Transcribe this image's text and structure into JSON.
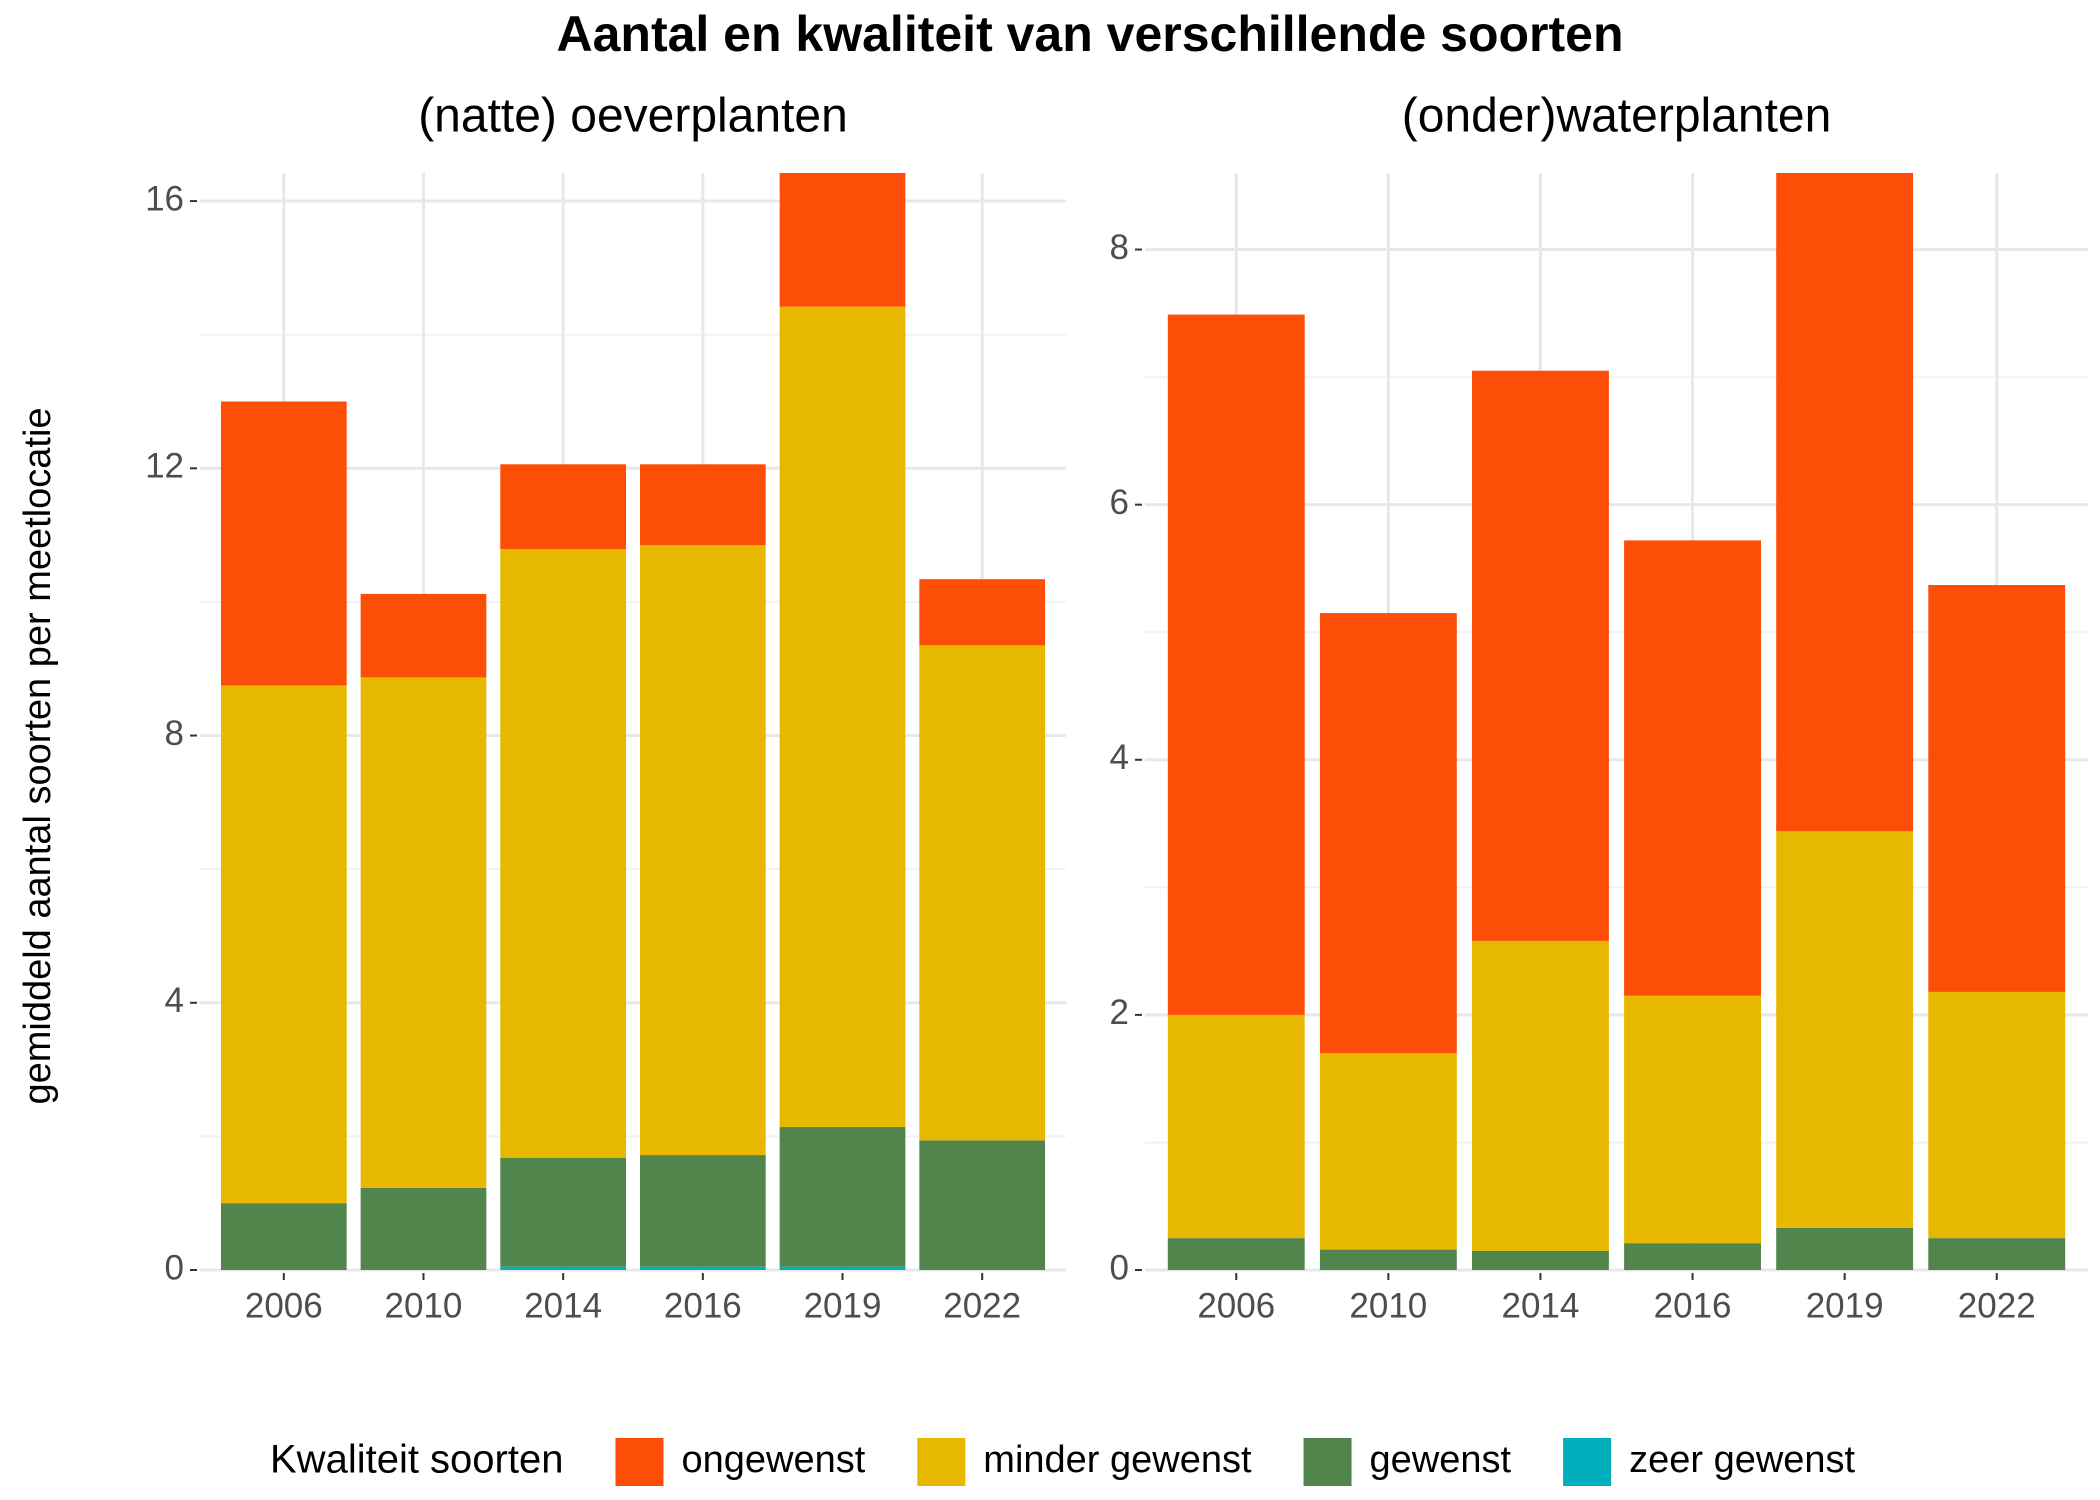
{
  "title": "Aantal en kwaliteit van verschillende soorten",
  "y_label": "gemiddeld aantal soorten per meetlocatie",
  "legend_title": "Kwaliteit soorten",
  "chart_data": [
    {
      "type": "stacked-bar",
      "subtitle": "(natte) oeverplanten",
      "categories": [
        "2006",
        "2010",
        "2014",
        "2016",
        "2019",
        "2022"
      ],
      "series": [
        {
          "name": "ongewenst",
          "color": "#fc4e07",
          "values": [
            4.25,
            1.25,
            1.27,
            1.21,
            2.0,
            0.99
          ]
        },
        {
          "name": "minder gewenst",
          "color": "#e7b800",
          "values": [
            7.75,
            7.64,
            9.11,
            9.13,
            12.28,
            7.41
          ]
        },
        {
          "name": "gewenst",
          "color": "#52854c",
          "values": [
            1.0,
            1.23,
            1.63,
            1.67,
            2.09,
            1.94
          ]
        },
        {
          "name": "zeer gewenst",
          "color": "#00afbb",
          "values": [
            0,
            0,
            0.05,
            0.05,
            0.05,
            0
          ]
        }
      ],
      "ylim": [
        0,
        16.42
      ],
      "yticks": [
        0,
        4,
        8,
        12,
        16
      ],
      "minor_yticks": [
        2,
        6,
        10,
        14
      ],
      "grid": true
    },
    {
      "type": "stacked-bar",
      "subtitle": "(onder)waterplanten",
      "categories": [
        "2006",
        "2010",
        "2014",
        "2016",
        "2019",
        "2022"
      ],
      "series": [
        {
          "name": "ongewenst",
          "color": "#fc4e07",
          "values": [
            5.49,
            3.45,
            4.47,
            3.57,
            5.16,
            3.19
          ]
        },
        {
          "name": "minder gewenst",
          "color": "#e7b800",
          "values": [
            1.75,
            1.54,
            2.43,
            1.94,
            3.11,
            1.93
          ]
        },
        {
          "name": "gewenst",
          "color": "#52854c",
          "values": [
            0.25,
            0.16,
            0.15,
            0.21,
            0.33,
            0.25
          ]
        },
        {
          "name": "zeer gewenst",
          "color": "#00afbb",
          "values": [
            0,
            0,
            0,
            0,
            0,
            0
          ]
        }
      ],
      "ylim": [
        0,
        8.6
      ],
      "yticks": [
        0,
        2,
        4,
        6,
        8
      ],
      "minor_yticks": [
        1,
        3,
        5,
        7
      ],
      "grid": true
    }
  ]
}
